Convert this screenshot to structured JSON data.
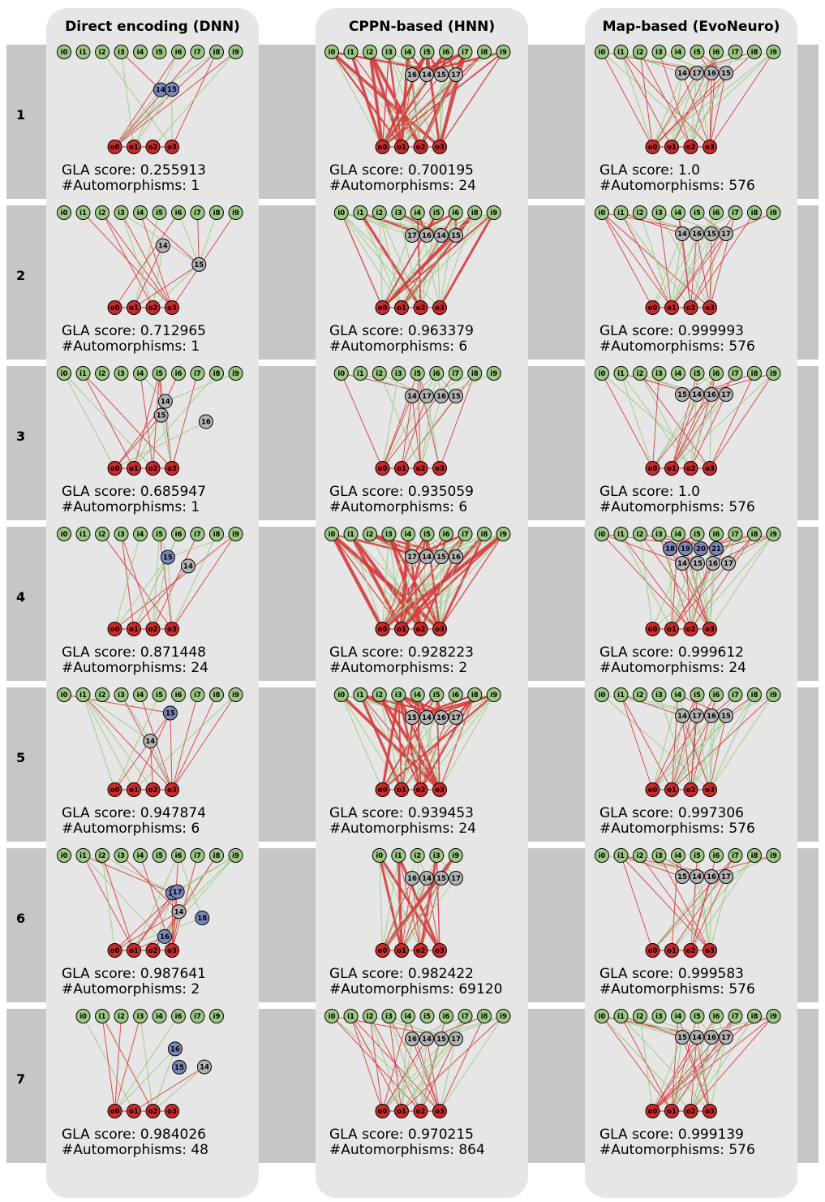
{
  "columns": [
    {
      "title": "Direct encoding (DNN)"
    },
    {
      "title": "CPPN-based (HNN)"
    },
    {
      "title": "Map-based (EvoNeuro)"
    }
  ],
  "rows": [
    {
      "label": "1"
    },
    {
      "label": "2"
    },
    {
      "label": "3"
    },
    {
      "label": "4"
    },
    {
      "label": "5"
    },
    {
      "label": "6"
    },
    {
      "label": "7"
    }
  ],
  "colors": {
    "input_node": "#9dc884",
    "output_node": "#cc2a2a",
    "hidden_node": "#b3b3b3",
    "hidden_node_alt": "#7a86b8",
    "edge_red": "#d43c3c",
    "edge_green": "#9dc884",
    "panel_bg": "#e6e6e6",
    "band_bg": "#c6c6c6"
  },
  "cells": [
    [
      {
        "score": "GLA score: 0.255913",
        "automorphisms": "#Automorphisms: 1",
        "inputs": [
          "i0",
          "i1",
          "i2",
          "i3",
          "i4",
          "i5",
          "i6",
          "i7",
          "i8",
          "i9"
        ],
        "hidden": [
          {
            "label": "14",
            "color": "blue"
          },
          {
            "label": "15",
            "color": "blue"
          }
        ],
        "outputs": [
          "o0",
          "o1",
          "o2",
          "o3"
        ],
        "density": "low"
      },
      {
        "score": "GLA score: 0.700195",
        "automorphisms": "#Automorphisms: 24",
        "inputs": [
          "i0",
          "i1",
          "i2",
          "i3",
          "i4",
          "i5",
          "i6",
          "i7",
          "i8",
          "i9"
        ],
        "hidden": [
          {
            "label": "16",
            "color": "gray"
          },
          {
            "label": "14",
            "color": "gray"
          },
          {
            "label": "15",
            "color": "gray"
          },
          {
            "label": "17",
            "color": "gray"
          }
        ],
        "outputs": [
          "o0",
          "o1",
          "o2",
          "o3"
        ],
        "density": "high"
      },
      {
        "score": "GLA score: 1.0",
        "automorphisms": "#Automorphisms: 576",
        "inputs": [
          "i0",
          "i1",
          "i2",
          "i3",
          "i4",
          "i5",
          "i6",
          "i7",
          "i8",
          "i9"
        ],
        "hidden": [
          {
            "label": "14",
            "color": "gray"
          },
          {
            "label": "17",
            "color": "gray"
          },
          {
            "label": "16",
            "color": "gray"
          },
          {
            "label": "15",
            "color": "gray"
          }
        ],
        "outputs": [
          "o0",
          "o1",
          "o2",
          "o3"
        ],
        "density": "medium"
      }
    ],
    [
      {
        "score": "GLA score: 0.712965",
        "automorphisms": "#Automorphisms: 1",
        "inputs": [
          "i0",
          "i1",
          "i2",
          "i3",
          "i4",
          "i5",
          "i6",
          "i7",
          "i8",
          "i9"
        ],
        "hidden": [
          {
            "label": "14",
            "color": "gray"
          },
          {
            "label": "15",
            "color": "gray"
          }
        ],
        "outputs": [
          "o0",
          "o1",
          "o2",
          "o3"
        ],
        "density": "low"
      },
      {
        "score": "GLA score: 0.963379",
        "automorphisms": "#Automorphisms: 6",
        "inputs": [
          "i0",
          "i1",
          "i2",
          "i3",
          "i4",
          "i5",
          "i6",
          "i8",
          "i9"
        ],
        "hidden": [
          {
            "label": "17",
            "color": "gray"
          },
          {
            "label": "16",
            "color": "gray"
          },
          {
            "label": "14",
            "color": "gray"
          },
          {
            "label": "15",
            "color": "gray"
          }
        ],
        "outputs": [
          "o0",
          "o1",
          "o2",
          "o3"
        ],
        "density": "high"
      },
      {
        "score": "GLA score: 0.999993",
        "automorphisms": "#Automorphisms: 576",
        "inputs": [
          "i0",
          "i1",
          "i2",
          "i3",
          "i4",
          "i5",
          "i6",
          "i7",
          "i8",
          "i9"
        ],
        "hidden": [
          {
            "label": "14",
            "color": "gray"
          },
          {
            "label": "16",
            "color": "gray"
          },
          {
            "label": "15",
            "color": "gray"
          },
          {
            "label": "17",
            "color": "gray"
          }
        ],
        "outputs": [
          "o0",
          "o1",
          "o2",
          "o3"
        ],
        "density": "medium"
      }
    ],
    [
      {
        "score": "GLA score: 0.685947",
        "automorphisms": "#Automorphisms: 1",
        "inputs": [
          "i0",
          "i1",
          "i2",
          "i3",
          "i4",
          "i5",
          "i6",
          "i7",
          "i8",
          "i9"
        ],
        "hidden": [
          {
            "label": "14",
            "color": "gray"
          },
          {
            "label": "15",
            "color": "gray"
          },
          {
            "label": "16",
            "color": "gray"
          }
        ],
        "outputs": [
          "o0",
          "o1",
          "o2",
          "o3"
        ],
        "density": "low"
      },
      {
        "score": "GLA score: 0.935059",
        "automorphisms": "#Automorphisms: 6",
        "inputs": [
          "i0",
          "i1",
          "i2",
          "i3",
          "i5",
          "i6",
          "i7",
          "i8",
          "i9"
        ],
        "hidden": [
          {
            "label": "14",
            "color": "gray"
          },
          {
            "label": "17",
            "color": "gray"
          },
          {
            "label": "16",
            "color": "gray"
          },
          {
            "label": "15",
            "color": "gray"
          }
        ],
        "outputs": [
          "o0",
          "o1",
          "o2",
          "o3"
        ],
        "density": "medium"
      },
      {
        "score": "GLA score: 1.0",
        "automorphisms": "#Automorphisms: 576",
        "inputs": [
          "i0",
          "i1",
          "i2",
          "i3",
          "i4",
          "i5",
          "i6",
          "i7",
          "i8",
          "i9"
        ],
        "hidden": [
          {
            "label": "15",
            "color": "gray"
          },
          {
            "label": "14",
            "color": "gray"
          },
          {
            "label": "16",
            "color": "gray"
          },
          {
            "label": "17",
            "color": "gray"
          }
        ],
        "outputs": [
          "o0",
          "o1",
          "o2",
          "o3"
        ],
        "density": "medium"
      }
    ],
    [
      {
        "score": "GLA score: 0.871448",
        "automorphisms": "#Automorphisms: 24",
        "inputs": [
          "i0",
          "i1",
          "i2",
          "i3",
          "i4",
          "i5",
          "i6",
          "i7",
          "i8",
          "i9"
        ],
        "hidden": [
          {
            "label": "15",
            "color": "blue"
          },
          {
            "label": "14",
            "color": "gray"
          }
        ],
        "outputs": [
          "o0",
          "o1",
          "o2",
          "o3"
        ],
        "density": "low"
      },
      {
        "score": "GLA score: 0.928223",
        "automorphisms": "#Automorphisms: 2",
        "inputs": [
          "i0",
          "i1",
          "i2",
          "i3",
          "i4",
          "i5",
          "i6",
          "i7",
          "i8",
          "i9"
        ],
        "hidden": [
          {
            "label": "17",
            "color": "gray"
          },
          {
            "label": "14",
            "color": "gray"
          },
          {
            "label": "15",
            "color": "gray"
          },
          {
            "label": "16",
            "color": "gray"
          }
        ],
        "outputs": [
          "o0",
          "o1",
          "o2",
          "o3"
        ],
        "density": "high"
      },
      {
        "score": "GLA score: 0.999612",
        "automorphisms": "#Automorphisms: 24",
        "inputs": [
          "i0",
          "i1",
          "i2",
          "i3",
          "i4",
          "i5",
          "i6",
          "i7",
          "i8",
          "i9"
        ],
        "hidden": [
          {
            "label": "18",
            "color": "blue"
          },
          {
            "label": "19",
            "color": "blue"
          },
          {
            "label": "20",
            "color": "blue"
          },
          {
            "label": "21",
            "color": "blue"
          },
          {
            "label": "14",
            "color": "gray"
          },
          {
            "label": "15",
            "color": "gray"
          },
          {
            "label": "16",
            "color": "gray"
          },
          {
            "label": "17",
            "color": "gray"
          }
        ],
        "outputs": [
          "o0",
          "o1",
          "o2",
          "o3"
        ],
        "density": "medium"
      }
    ],
    [
      {
        "score": "GLA score: 0.947874",
        "automorphisms": "#Automorphisms: 6",
        "inputs": [
          "i0",
          "i1",
          "i2",
          "i3",
          "i4",
          "i5",
          "i6",
          "i7",
          "i8",
          "i9"
        ],
        "hidden": [
          {
            "label": "15",
            "color": "blue"
          },
          {
            "label": "14",
            "color": "gray"
          }
        ],
        "outputs": [
          "o0",
          "o1",
          "o2",
          "o3"
        ],
        "density": "low"
      },
      {
        "score": "GLA score: 0.939453",
        "automorphisms": "#Automorphisms: 24",
        "inputs": [
          "i0",
          "i1",
          "i2",
          "i3",
          "i4",
          "i5",
          "i6",
          "i8",
          "i9"
        ],
        "hidden": [
          {
            "label": "15",
            "color": "gray"
          },
          {
            "label": "14",
            "color": "gray"
          },
          {
            "label": "16",
            "color": "gray"
          },
          {
            "label": "17",
            "color": "gray"
          }
        ],
        "outputs": [
          "o0",
          "o1",
          "o2",
          "o3"
        ],
        "density": "high"
      },
      {
        "score": "GLA score: 0.997306",
        "automorphisms": "#Automorphisms: 576",
        "inputs": [
          "i0",
          "i1",
          "i2",
          "i3",
          "i4",
          "i5",
          "i6",
          "i7",
          "i8",
          "i9"
        ],
        "hidden": [
          {
            "label": "14",
            "color": "gray"
          },
          {
            "label": "17",
            "color": "gray"
          },
          {
            "label": "16",
            "color": "gray"
          },
          {
            "label": "15",
            "color": "gray"
          }
        ],
        "outputs": [
          "o0",
          "o1",
          "o2",
          "o3"
        ],
        "density": "medium"
      }
    ],
    [
      {
        "score": "GLA score: 0.987641",
        "automorphisms": "#Automorphisms: 2",
        "inputs": [
          "i0",
          "i1",
          "i2",
          "i3",
          "i4",
          "i5",
          "i6",
          "i7",
          "i8",
          "i9"
        ],
        "hidden": [
          {
            "label": "15",
            "color": "blue"
          },
          {
            "label": "17",
            "color": "blue"
          },
          {
            "label": "18",
            "color": "blue"
          },
          {
            "label": "14",
            "color": "gray"
          },
          {
            "label": "16",
            "color": "blue"
          }
        ],
        "outputs": [
          "o0",
          "o1",
          "o2",
          "o3"
        ],
        "density": "low"
      },
      {
        "score": "GLA score: 0.982422",
        "automorphisms": "#Automorphisms: 69120",
        "inputs": [
          "i0",
          "i1",
          "i2",
          "i3",
          "i9"
        ],
        "hidden": [
          {
            "label": "16",
            "color": "gray"
          },
          {
            "label": "14",
            "color": "gray"
          },
          {
            "label": "15",
            "color": "gray"
          },
          {
            "label": "17",
            "color": "gray"
          }
        ],
        "outputs": [
          "o0",
          "o1",
          "o2",
          "o3"
        ],
        "density": "high"
      },
      {
        "score": "GLA score: 0.999583",
        "automorphisms": "#Automorphisms: 576",
        "inputs": [
          "i0",
          "i1",
          "i2",
          "i3",
          "i4",
          "i5",
          "i6",
          "i7",
          "i8",
          "i9"
        ],
        "hidden": [
          {
            "label": "15",
            "color": "gray"
          },
          {
            "label": "14",
            "color": "gray"
          },
          {
            "label": "16",
            "color": "gray"
          },
          {
            "label": "17",
            "color": "gray"
          }
        ],
        "outputs": [
          "o0",
          "o1",
          "o2",
          "o3"
        ],
        "density": "medium"
      }
    ],
    [
      {
        "score": "GLA score: 0.984026",
        "automorphisms": "#Automorphisms: 48",
        "inputs": [
          "i0",
          "i1",
          "i2",
          "i3",
          "i4",
          "i6",
          "i7",
          "i9"
        ],
        "hidden": [
          {
            "label": "16",
            "color": "blue"
          },
          {
            "label": "14",
            "color": "gray"
          },
          {
            "label": "15",
            "color": "blue"
          }
        ],
        "outputs": [
          "o0",
          "o1",
          "o2",
          "o3"
        ],
        "density": "low"
      },
      {
        "score": "GLA score: 0.970215",
        "automorphisms": "#Automorphisms: 864",
        "inputs": [
          "i0",
          "i1",
          "i2",
          "i3",
          "i4",
          "i5",
          "i6",
          "i7",
          "i8",
          "i9"
        ],
        "hidden": [
          {
            "label": "16",
            "color": "gray"
          },
          {
            "label": "14",
            "color": "gray"
          },
          {
            "label": "15",
            "color": "gray"
          },
          {
            "label": "17",
            "color": "gray"
          }
        ],
        "outputs": [
          "o0",
          "o1",
          "o2",
          "o3"
        ],
        "density": "medium"
      },
      {
        "score": "GLA score: 0.999139",
        "automorphisms": "#Automorphisms: 576",
        "inputs": [
          "i0",
          "i1",
          "i2",
          "i3",
          "i4",
          "i5",
          "i6",
          "i7",
          "i8",
          "i9"
        ],
        "hidden": [
          {
            "label": "15",
            "color": "gray"
          },
          {
            "label": "14",
            "color": "gray"
          },
          {
            "label": "16",
            "color": "gray"
          },
          {
            "label": "17",
            "color": "gray"
          }
        ],
        "outputs": [
          "o0",
          "o1",
          "o2",
          "o3"
        ],
        "density": "medium"
      }
    ]
  ]
}
